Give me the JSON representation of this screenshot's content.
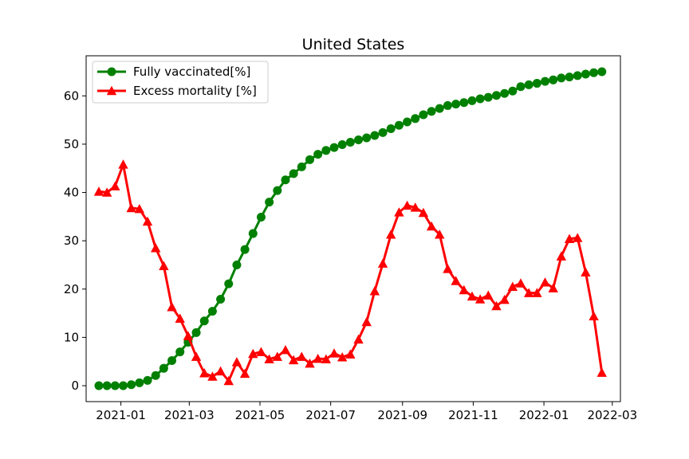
{
  "chart_data": {
    "type": "line",
    "title": "United States",
    "xlabel": "",
    "ylabel": "",
    "x_range": [
      "2020-12-02",
      "2022-03-08"
    ],
    "ylim": [
      -3.3,
      68.3
    ],
    "x_ticks": [
      "2021-01-01",
      "2021-03-01",
      "2021-05-01",
      "2021-07-01",
      "2021-09-01",
      "2021-11-01",
      "2022-01-01",
      "2022-03-01"
    ],
    "x_tick_labels": [
      "2021-01",
      "2021-03",
      "2021-05",
      "2021-07",
      "2021-09",
      "2021-11",
      "2022-01",
      "2022-03"
    ],
    "y_ticks": [
      0,
      10,
      20,
      30,
      40,
      50,
      60
    ],
    "y_tick_labels": [
      "0",
      "10",
      "20",
      "30",
      "40",
      "50",
      "60"
    ],
    "grid": false,
    "legend_position": "top-left",
    "x": [
      "2020-12-13",
      "2020-12-20",
      "2020-12-27",
      "2021-01-03",
      "2021-01-10",
      "2021-01-17",
      "2021-01-24",
      "2021-01-31",
      "2021-02-07",
      "2021-02-14",
      "2021-02-21",
      "2021-02-28",
      "2021-03-07",
      "2021-03-14",
      "2021-03-21",
      "2021-03-28",
      "2021-04-04",
      "2021-04-11",
      "2021-04-18",
      "2021-04-25",
      "2021-05-02",
      "2021-05-09",
      "2021-05-16",
      "2021-05-23",
      "2021-05-30",
      "2021-06-06",
      "2021-06-13",
      "2021-06-20",
      "2021-06-27",
      "2021-07-04",
      "2021-07-11",
      "2021-07-18",
      "2021-07-25",
      "2021-08-01",
      "2021-08-08",
      "2021-08-15",
      "2021-08-22",
      "2021-08-29",
      "2021-09-05",
      "2021-09-12",
      "2021-09-19",
      "2021-09-26",
      "2021-10-03",
      "2021-10-10",
      "2021-10-17",
      "2021-10-24",
      "2021-10-31",
      "2021-11-07",
      "2021-11-14",
      "2021-11-21",
      "2021-11-28",
      "2021-12-05",
      "2021-12-12",
      "2021-12-19",
      "2021-12-26",
      "2022-01-02",
      "2022-01-09",
      "2022-01-16",
      "2022-01-23",
      "2022-01-30",
      "2022-02-06",
      "2022-02-13",
      "2022-02-20"
    ],
    "series": [
      {
        "name": "Fully vaccinated[%]",
        "color": "#008000",
        "marker": "circle",
        "values": [
          0,
          0,
          0,
          0,
          0.2,
          0.6,
          1.1,
          2.1,
          3.6,
          5.2,
          7.0,
          9.0,
          11.0,
          13.4,
          15.4,
          17.9,
          21.1,
          25.0,
          28.2,
          31.5,
          34.9,
          38.0,
          40.4,
          42.6,
          43.9,
          45.3,
          46.8,
          47.9,
          48.7,
          49.3,
          49.9,
          50.4,
          50.9,
          51.3,
          51.8,
          52.4,
          53.2,
          53.9,
          54.6,
          55.3,
          56.1,
          56.8,
          57.4,
          58.0,
          58.3,
          58.6,
          59.0,
          59.4,
          59.7,
          60.1,
          60.5,
          61.0,
          61.9,
          62.3,
          62.6,
          63.0,
          63.3,
          63.7,
          63.9,
          64.2,
          64.5,
          64.8,
          65.0
        ]
      },
      {
        "name": "Excess mortality [%]",
        "color": "#ff0000",
        "marker": "triangle",
        "values": [
          40.2,
          40.0,
          41.3,
          45.8,
          36.8,
          36.6,
          34.0,
          28.5,
          24.8,
          16.3,
          13.9,
          10.3,
          6.0,
          2.6,
          1.9,
          3.0,
          1.0,
          4.9,
          2.5,
          6.6,
          7.0,
          5.5,
          6.0,
          7.4,
          5.3,
          6.0,
          4.6,
          5.6,
          5.5,
          6.7,
          5.9,
          6.5,
          9.6,
          13.2,
          19.6,
          25.3,
          31.3,
          35.9,
          37.3,
          36.9,
          35.8,
          33.0,
          31.3,
          24.2,
          21.7,
          19.8,
          18.5,
          17.9,
          18.7,
          16.5,
          17.8,
          20.5,
          21.2,
          19.2,
          19.2,
          21.4,
          20.2,
          26.8,
          30.4,
          30.6,
          23.5,
          14.4,
          2.7
        ]
      }
    ]
  }
}
